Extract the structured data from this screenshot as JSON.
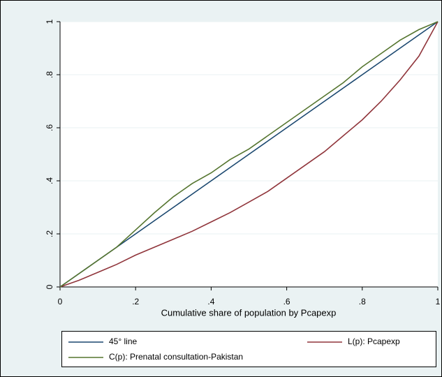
{
  "chart_data": {
    "type": "line",
    "xlabel": "Cumulative share of population by Pcapexp",
    "x": [
      0,
      0.05,
      0.1,
      0.15,
      0.2,
      0.25,
      0.3,
      0.35,
      0.4,
      0.45,
      0.5,
      0.55,
      0.6,
      0.65,
      0.7,
      0.75,
      0.8,
      0.85,
      0.9,
      0.95,
      1
    ],
    "series": [
      {
        "name": "45° line",
        "color": "#1a476f",
        "values": [
          0,
          0.05,
          0.1,
          0.15,
          0.2,
          0.25,
          0.3,
          0.35,
          0.4,
          0.45,
          0.5,
          0.55,
          0.6,
          0.65,
          0.7,
          0.75,
          0.8,
          0.85,
          0.9,
          0.95,
          1
        ]
      },
      {
        "name": "L(p): Pcapexp",
        "color": "#90353b",
        "values": [
          0,
          0.025,
          0.055,
          0.085,
          0.12,
          0.15,
          0.18,
          0.21,
          0.245,
          0.28,
          0.32,
          0.36,
          0.41,
          0.46,
          0.51,
          0.57,
          0.63,
          0.7,
          0.78,
          0.87,
          1
        ]
      },
      {
        "name": "C(p): Prenatal consultation-Pakistan",
        "color": "#55752f",
        "values": [
          0,
          0.05,
          0.1,
          0.15,
          0.215,
          0.28,
          0.34,
          0.39,
          0.43,
          0.48,
          0.52,
          0.57,
          0.62,
          0.67,
          0.72,
          0.77,
          0.83,
          0.88,
          0.93,
          0.97,
          1
        ]
      }
    ],
    "xlim": [
      0,
      1
    ],
    "ylim": [
      0,
      1
    ],
    "xticks": [
      0,
      {
        "value": 0.2,
        "label": ".2"
      },
      {
        "value": 0.4,
        "label": ".4"
      },
      {
        "value": 0.6,
        "label": ".6"
      },
      {
        "value": 0.8,
        "label": ".8"
      },
      1
    ],
    "yticks": [
      0,
      {
        "value": 0.2,
        "label": ".2"
      },
      {
        "value": 0.4,
        "label": ".4"
      },
      {
        "value": 0.6,
        "label": ".6"
      },
      {
        "value": 0.8,
        "label": ".8"
      },
      1
    ],
    "grid": true
  }
}
